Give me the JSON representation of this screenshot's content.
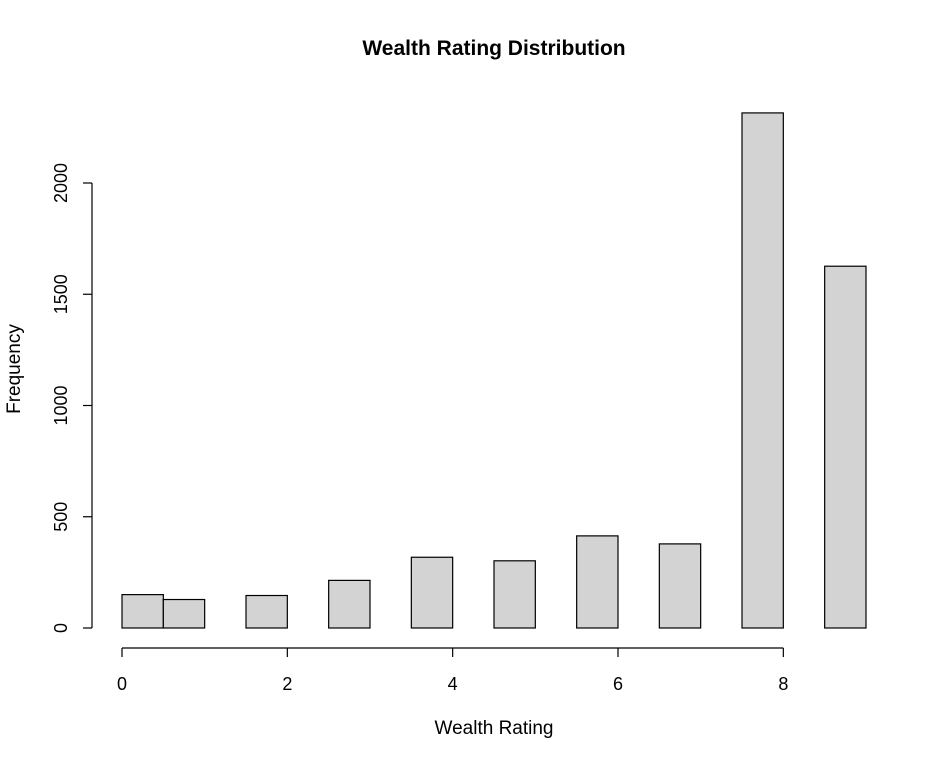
{
  "chart_data": {
    "type": "bar",
    "title": "Wealth Rating Distribution",
    "xlabel": "Wealth Rating",
    "ylabel": "Frequency",
    "bins": [
      {
        "start": 0.0,
        "end": 0.5,
        "value": 150
      },
      {
        "start": 0.5,
        "end": 1.0,
        "value": 128
      },
      {
        "start": 1.5,
        "end": 2.0,
        "value": 146
      },
      {
        "start": 2.5,
        "end": 3.0,
        "value": 214
      },
      {
        "start": 3.5,
        "end": 4.0,
        "value": 318
      },
      {
        "start": 4.5,
        "end": 5.0,
        "value": 302
      },
      {
        "start": 5.5,
        "end": 6.0,
        "value": 414
      },
      {
        "start": 6.5,
        "end": 7.0,
        "value": 378
      },
      {
        "start": 7.5,
        "end": 8.0,
        "value": 2315
      },
      {
        "start": 8.5,
        "end": 9.0,
        "value": 1626
      }
    ],
    "xlim": [
      0,
      9
    ],
    "ylim": [
      0,
      2320
    ],
    "x_ticks": [
      0,
      2,
      4,
      6,
      8
    ],
    "x_tick_labels": [
      "0",
      "2",
      "4",
      "6",
      "8"
    ],
    "y_ticks": [
      0,
      500,
      1000,
      1500,
      2000
    ],
    "y_tick_labels": [
      "0",
      "500",
      "1000",
      "1500",
      "2000"
    ],
    "bar_color": "#d3d3d3",
    "edge_color": "#000000",
    "grid": false
  }
}
